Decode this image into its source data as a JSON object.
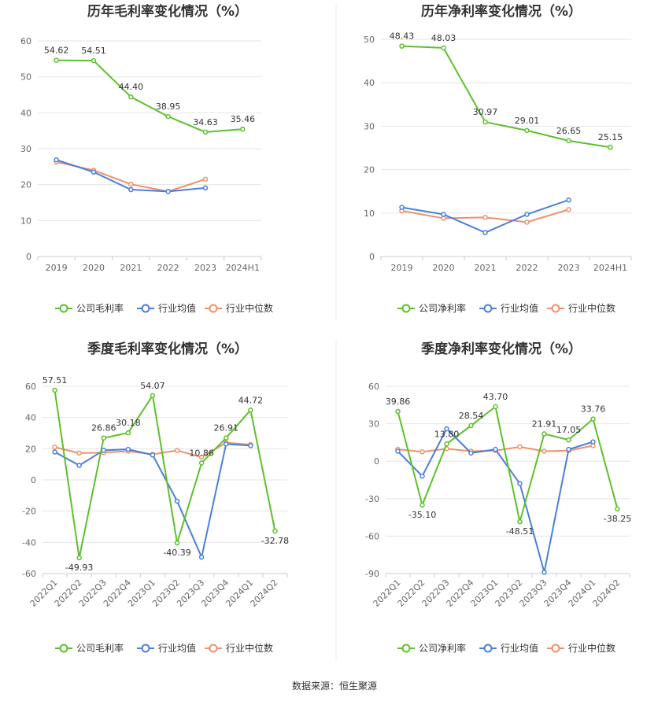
{
  "footer": "数据来源：恒生聚源",
  "legend_labels": {
    "industry_avg": "行业均值",
    "industry_median": "行业中位数"
  },
  "colors": {
    "company": "#5cc02c",
    "industry_avg": "#4a7fdb",
    "industry_median": "#f0906a",
    "grid": "#e6e6e6",
    "axis": "#cccccc",
    "divider": "#eeeeee"
  },
  "chart_data": [
    {
      "type": "line",
      "title": "历年毛利率变化情况（%）",
      "categories": [
        "2019",
        "2020",
        "2021",
        "2022",
        "2023",
        "2024H1"
      ],
      "ylim": [
        0,
        60
      ],
      "yticks": [
        0,
        10,
        20,
        30,
        40,
        50,
        60
      ],
      "grid": true,
      "legend": "bottom",
      "series": [
        {
          "name": "公司毛利率",
          "key": "company",
          "values": [
            54.62,
            54.51,
            44.4,
            38.95,
            34.63,
            35.46
          ],
          "labels": [
            "54.62",
            "54.51",
            "44.40",
            "38.95",
            "34.63",
            "35.46"
          ]
        },
        {
          "name": "行业均值",
          "key": "industry_avg",
          "values": [
            26.9,
            23.5,
            18.6,
            18.1,
            19.1,
            null
          ]
        },
        {
          "name": "行业中位数",
          "key": "industry_median",
          "values": [
            26.3,
            24.0,
            20.1,
            18.1,
            21.5,
            null
          ]
        }
      ]
    },
    {
      "type": "line",
      "title": "历年净利率变化情况（%）",
      "categories": [
        "2019",
        "2020",
        "2021",
        "2022",
        "2023",
        "2024H1"
      ],
      "ylim": [
        0,
        50
      ],
      "yticks": [
        0,
        10,
        20,
        30,
        40,
        50
      ],
      "grid": true,
      "legend": "bottom",
      "series": [
        {
          "name": "公司净利率",
          "key": "company",
          "values": [
            48.43,
            48.03,
            30.97,
            29.01,
            26.65,
            25.15
          ],
          "labels": [
            "48.43",
            "48.03",
            "30.97",
            "29.01",
            "26.65",
            "25.15"
          ]
        },
        {
          "name": "行业均值",
          "key": "industry_avg",
          "values": [
            11.3,
            9.7,
            5.5,
            9.7,
            13.0,
            null
          ]
        },
        {
          "name": "行业中位数",
          "key": "industry_median",
          "values": [
            10.5,
            8.8,
            9.0,
            7.9,
            10.8,
            null
          ]
        }
      ]
    },
    {
      "type": "line",
      "title": "季度毛利率变化情况（%）",
      "categories": [
        "2022Q1",
        "2022Q2",
        "2022Q3",
        "2022Q4",
        "2023Q1",
        "2023Q2",
        "2023Q3",
        "2023Q4",
        "2024Q1",
        "2024Q2"
      ],
      "ylim": [
        -60,
        60
      ],
      "yticks": [
        -60,
        -40,
        -20,
        0,
        20,
        40,
        60
      ],
      "grid": true,
      "legend": "bottom",
      "series": [
        {
          "name": "公司毛利率",
          "key": "company",
          "values": [
            57.51,
            -49.93,
            26.86,
            30.18,
            54.07,
            -40.39,
            10.86,
            26.91,
            44.72,
            -32.78
          ],
          "labels": [
            "57.51",
            "-49.93",
            "26.86",
            "30.18",
            "54.07",
            "-40.39",
            "10.86",
            "26.91",
            "44.72",
            "-32.78"
          ]
        },
        {
          "name": "行业均值",
          "key": "industry_avg",
          "values": [
            17.9,
            9.3,
            19.0,
            19.6,
            16.0,
            -13.6,
            -49.5,
            23.0,
            22.0,
            null
          ]
        },
        {
          "name": "行业中位数",
          "key": "industry_median",
          "values": [
            21.0,
            17.2,
            17.5,
            18.4,
            16.4,
            18.9,
            14.6,
            23.9,
            22.6,
            null
          ]
        }
      ]
    },
    {
      "type": "line",
      "title": "季度净利率变化情况（%）",
      "categories": [
        "2022Q1",
        "2022Q2",
        "2022Q3",
        "2022Q4",
        "2023Q1",
        "2023Q2",
        "2023Q3",
        "2023Q4",
        "2024Q1",
        "2024Q2"
      ],
      "ylim": [
        -90,
        60
      ],
      "yticks": [
        -90,
        -60,
        -30,
        0,
        30,
        60
      ],
      "grid": true,
      "legend": "bottom",
      "series": [
        {
          "name": "公司净利率",
          "key": "company",
          "values": [
            39.86,
            -35.1,
            13.8,
            28.54,
            43.7,
            -48.51,
            21.91,
            17.05,
            33.76,
            -38.25
          ],
          "labels": [
            "39.86",
            "-35.10",
            "13.80",
            "28.54",
            "43.70",
            "-48.51",
            "21.91",
            "17.05",
            "33.76",
            "-38.25"
          ]
        },
        {
          "name": "行业均值",
          "key": "industry_avg",
          "values": [
            8.0,
            -12.0,
            26.0,
            6.5,
            9.5,
            -18.0,
            -89.0,
            9.5,
            15.5,
            null
          ]
        },
        {
          "name": "行业中位数",
          "key": "industry_median",
          "values": [
            9.5,
            7.5,
            10.0,
            8.0,
            8.5,
            11.5,
            8.0,
            8.5,
            12.5,
            null
          ]
        }
      ]
    }
  ]
}
